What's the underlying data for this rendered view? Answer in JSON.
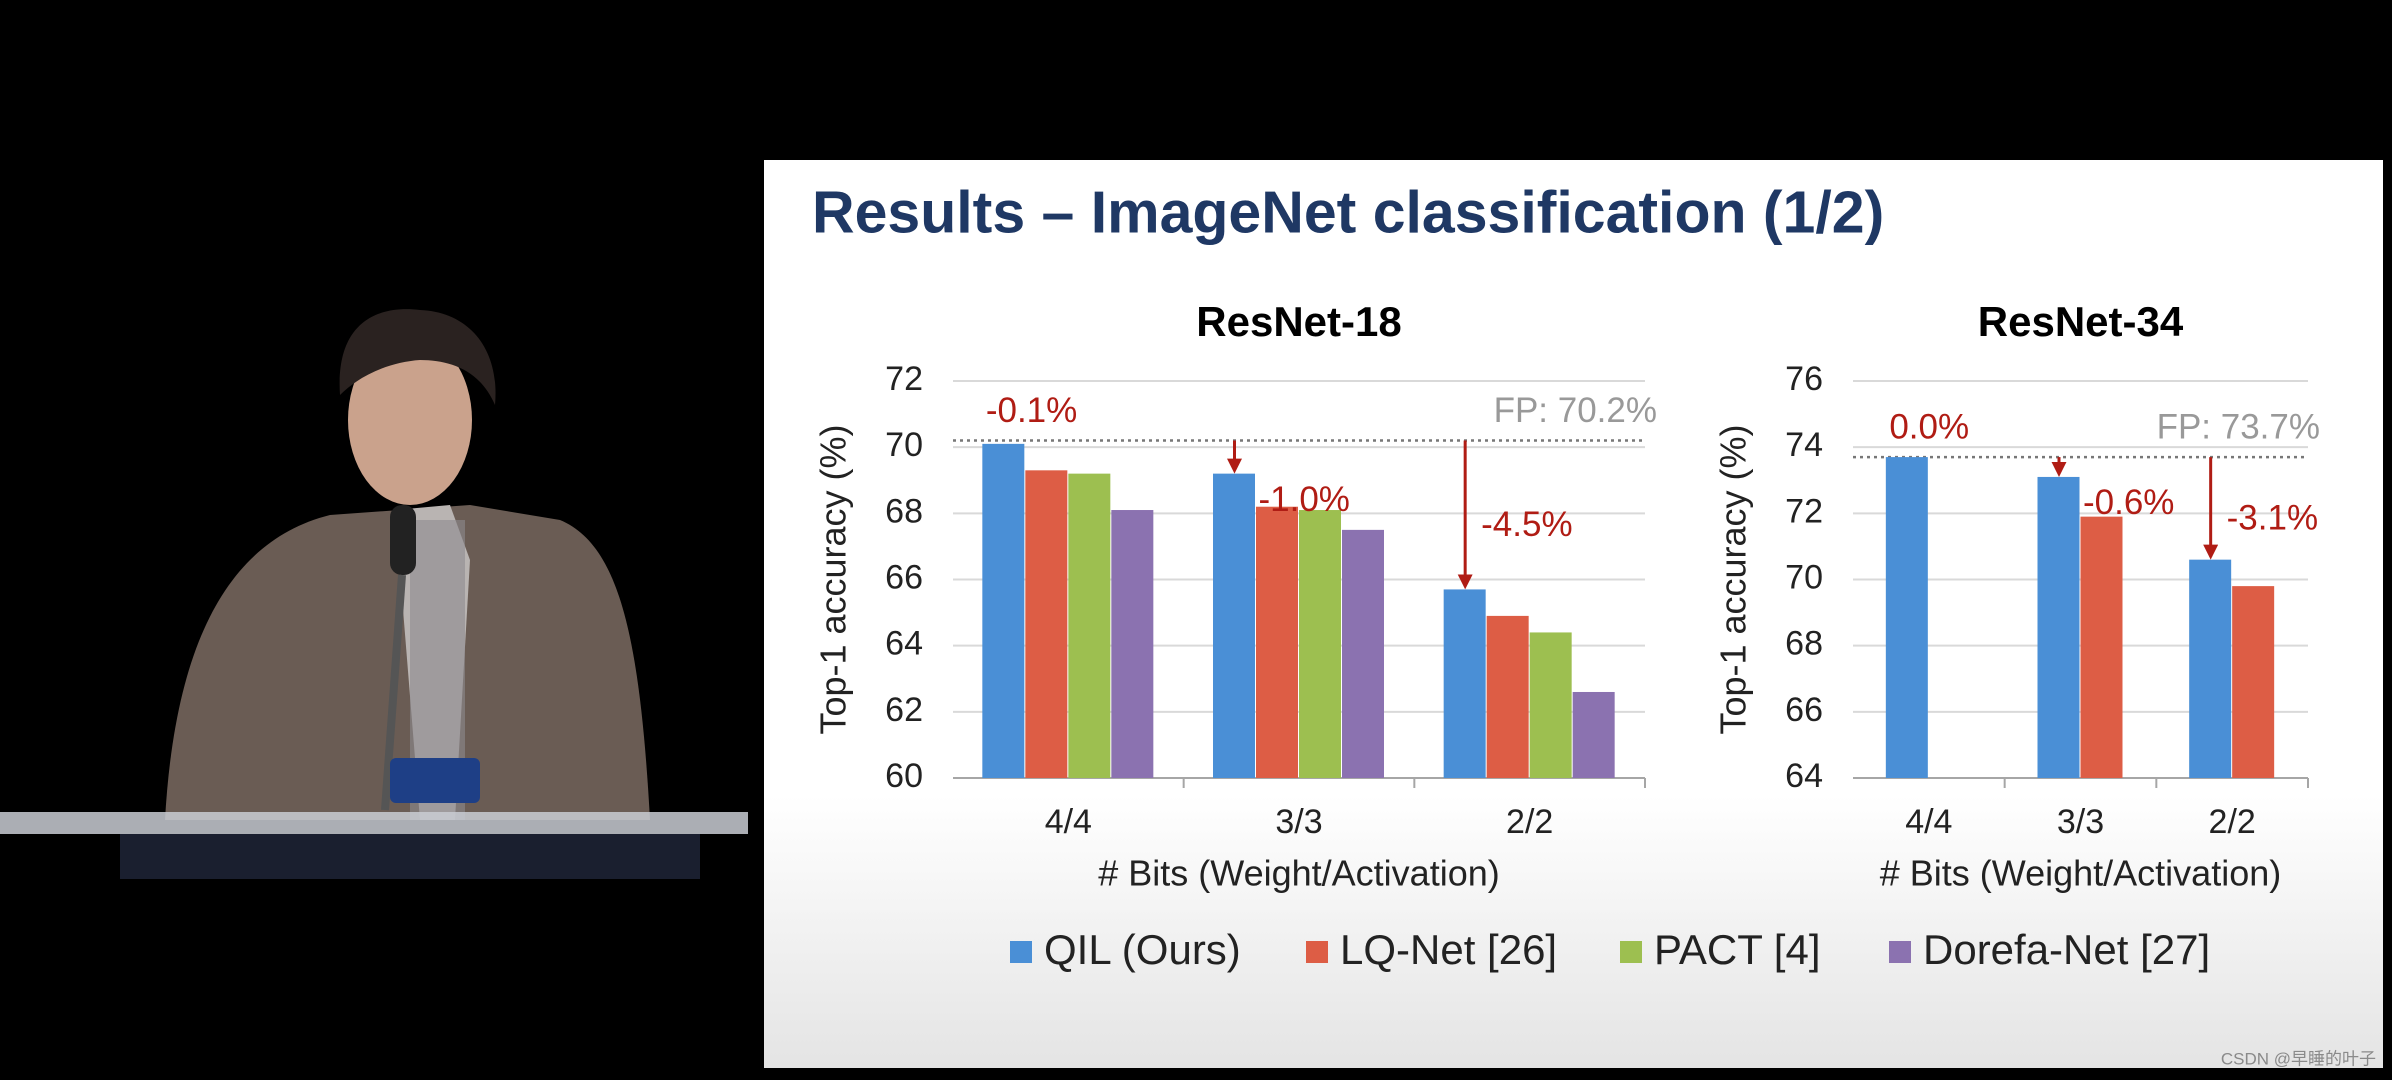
{
  "slide": {
    "title": "Results – ImageNet classification (1/2)"
  },
  "watermark": "CSDN @早睡的叶子",
  "chart_data": [
    {
      "type": "bar",
      "title": "ResNet-18",
      "x_label": "# Bits (Weight/Activation)",
      "y_label": "Top-1 accuracy (%)",
      "categories": [
        "4/4",
        "3/3",
        "2/2"
      ],
      "series": [
        {
          "name": "QIL (Ours)",
          "color": "#4a8fd6",
          "values": [
            70.1,
            69.2,
            65.7
          ]
        },
        {
          "name": "LQ-Net [26]",
          "color": "#dd5d45",
          "values": [
            69.3,
            68.2,
            64.9
          ]
        },
        {
          "name": "PACT [4]",
          "color": "#9dbf50",
          "values": [
            69.2,
            68.1,
            64.4
          ]
        },
        {
          "name": "Dorefa-Net [27]",
          "color": "#8b72b0",
          "values": [
            68.1,
            67.5,
            62.6
          ]
        }
      ],
      "fp": {
        "value": 70.2,
        "label": "FP: 70.2%"
      },
      "annotations": [
        "-0.1%",
        "-1.0%",
        "-4.5%"
      ],
      "ylim": [
        60,
        72
      ],
      "yticks": [
        60,
        62,
        64,
        66,
        68,
        70,
        72
      ],
      "grid": true
    },
    {
      "type": "bar",
      "title": "ResNet-34",
      "x_label": "# Bits (Weight/Activation)",
      "y_label": "Top-1 accuracy (%)",
      "categories": [
        "4/4",
        "3/3",
        "2/2"
      ],
      "series": [
        {
          "color": "#4a8fd6",
          "values": [
            73.7,
            73.1,
            70.6
          ]
        },
        {
          "color": "#dd5d45",
          "values": [
            null,
            71.9,
            69.8
          ]
        }
      ],
      "fp": {
        "value": 73.7,
        "label": "FP: 73.7%"
      },
      "annotations": [
        "0.0%",
        "-0.6%",
        "-3.1%"
      ],
      "ylim": [
        64,
        76
      ],
      "yticks": [
        64,
        66,
        68,
        70,
        72,
        74,
        76
      ],
      "grid": true
    }
  ]
}
